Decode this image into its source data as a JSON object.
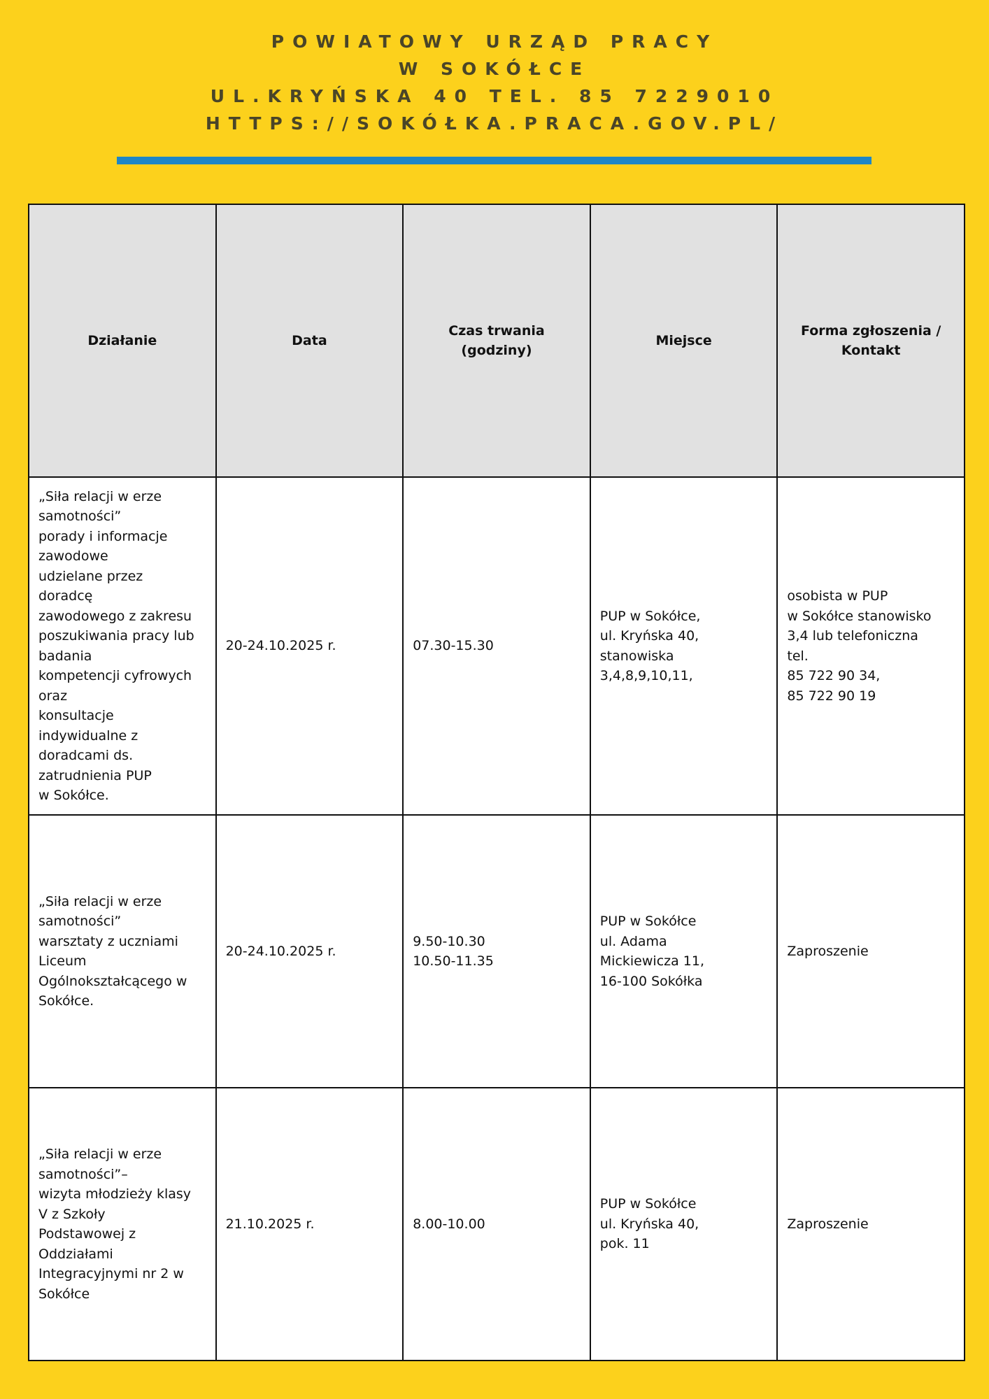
{
  "header": {
    "lines": [
      "POWIATOWY URZĄD PRACY",
      "W SOKÓŁCE",
      "UL.KRYŃSKA 40 TEL. 85 7229010",
      "HTTPS://SOKÓŁKA.PRACA.GOV.PL/"
    ],
    "accent_color": "#1e86c6",
    "background_color": "#fcd11c"
  },
  "table": {
    "columns": [
      "Działanie",
      "Data",
      "Czas trwania\n(godziny)",
      "Miejsce",
      "Forma zgłoszenia /\nKontakt"
    ],
    "rows": [
      [
        "„Siła relacji w erze\nsamotności”\nporady i informacje\nzawodowe\nudzielane przez\ndoradcę\nzawodowego z zakresu\nposzukiwania pracy lub\nbadania\nkompetencji cyfrowych\noraz\nkonsultacje\nindywidualne z\ndoradcami ds.\nzatrudnienia PUP\nw Sokółce.",
        "20-24.10.2025 r.",
        "07.30-15.30",
        "PUP w Sokółce,\nul. Kryńska 40,\nstanowiska\n3,4,8,9,10,11,",
        "osobista w PUP\nw Sokółce stanowisko\n3,4 lub telefoniczna\ntel.\n85 722 90 34,\n85 722 90 19"
      ],
      [
        "„Siła relacji w erze\nsamotności”\nwarsztaty z uczniami\nLiceum\nOgólnokształcącego w\nSokółce.",
        "20-24.10.2025 r.",
        "9.50-10.30\n10.50-11.35",
        "PUP w Sokółce\nul. Adama\nMickiewicza 11,\n16-100 Sokółka",
        "Zaproszenie"
      ],
      [
        "„Siła relacji w erze\nsamotności”–\nwizyta młodzieży klasy\nV z Szkoły\nPodstawowej z\nOddziałami\nIntegracyjnymi nr 2 w\nSokółce",
        "21.10.2025 r.",
        "8.00-10.00",
        "PUP w Sokółce\nul. Kryńska 40,\npok. 11",
        "Zaproszenie"
      ]
    ]
  }
}
